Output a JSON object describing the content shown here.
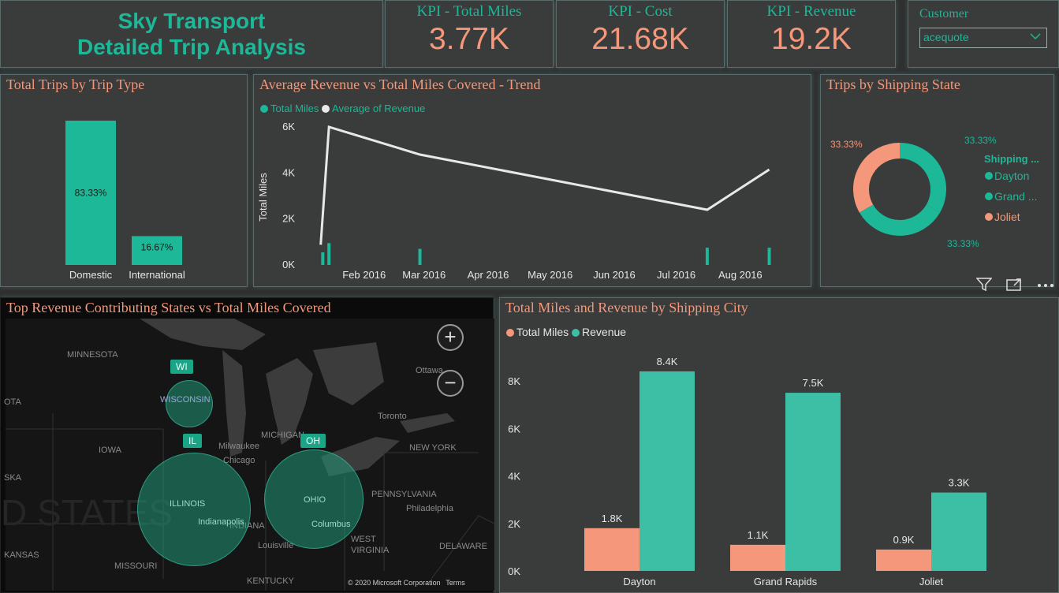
{
  "title": {
    "line1": "Sky Transport",
    "line2": "Detailed Trip Analysis"
  },
  "kpis": [
    {
      "label": "KPI - Total Miles",
      "value": "3.77K"
    },
    {
      "label": "KPI - Cost",
      "value": "21.68K"
    },
    {
      "label": "KPI - Revenue",
      "value": "19.2K"
    }
  ],
  "slicer": {
    "label": "Customer",
    "selected": "acequote",
    "chevron_icon": "chevron-down-icon"
  },
  "colors": {
    "teal": "#1cb898",
    "salmon": "#f4977a",
    "line": "#e8e8e8",
    "background": "#2f3030"
  },
  "visual_header_icons": [
    "filter-icon",
    "focus-mode-icon",
    "more-options-icon"
  ],
  "map": {
    "title": "Top Revenue Contributing States vs Total Miles Covered",
    "zoom_in": "+",
    "zoom_out": "−",
    "badges": {
      "wi": "WI",
      "il": "IL",
      "oh": "OH"
    },
    "labels": {
      "minnesota": "MINNESOTA",
      "wisconsin": "WISCONSIN",
      "michigan": "MICHIGAN",
      "iowa": "IOWA",
      "illinois": "ILLINOIS",
      "ohio": "OHIO",
      "indiana": "INDIANA",
      "pennsylvania": "PENNSYLVANIA",
      "newyork": "NEW YORK",
      "westvirginia": "WEST",
      "virginia": "VIRGINIA",
      "kentucky": "KENTUCKY",
      "missouri": "MISSOURI",
      "kansas": "KANSAS",
      "milwaukee": "Milwaukee",
      "chicago": "Chicago",
      "toronto": "Toronto",
      "ottawa": "Ottawa",
      "philadelphia": "Philadelphia",
      "indianapolis": "Indianapolis",
      "columbus": "Columbus",
      "louisville": "Louisville",
      "delaware": "DELAWARE",
      "ska": "SKA",
      "ota": "OTA",
      "states_watermark": "D STATES"
    },
    "copyright": "© 2020 Microsoft Corporation",
    "terms": "Terms"
  },
  "chart_data": [
    {
      "type": "bar",
      "title": "Total Trips by Trip Type",
      "categories": [
        "Domestic",
        "International"
      ],
      "values": [
        83.33,
        16.67
      ],
      "data_labels": [
        "83.33%",
        "16.67%"
      ],
      "color": "#1cb898"
    },
    {
      "type": "line",
      "title": "Average Revenue vs Total Miles Covered - Trend",
      "ylabel": "Total Miles",
      "y_ticks": [
        "0K",
        "2K",
        "4K",
        "6K"
      ],
      "ylim": [
        0,
        6500
      ],
      "x_ticks": [
        "Feb 2016",
        "Mar 2016",
        "Apr 2016",
        "May 2016",
        "Jun 2016",
        "Jul 2016",
        "Aug 2016"
      ],
      "legend": [
        "Total Miles",
        "Average of Revenue"
      ],
      "series": [
        {
          "name": "Average of Revenue",
          "type": "line",
          "x": [
            "2016-01-15",
            "2016-01-19",
            "2016-03-03",
            "2016-07-20",
            "2016-08-19"
          ],
          "values": [
            880,
            6000,
            4800,
            2400,
            4150
          ],
          "color": "#e8e8e8"
        },
        {
          "name": "Total Miles",
          "type": "bar",
          "x": [
            "2016-01-16",
            "2016-01-19",
            "2016-03-03",
            "2016-07-20",
            "2016-08-19"
          ],
          "values": [
            550,
            950,
            700,
            750,
            750
          ],
          "color": "#1cb898"
        }
      ]
    },
    {
      "type": "pie",
      "title": "Trips by Shipping State",
      "legend_title": "Shipping ...",
      "labels": [
        "Dayton",
        "Grand ...",
        "Joliet"
      ],
      "values": [
        33.33,
        33.33,
        33.33
      ],
      "data_labels": [
        "33.33%",
        "33.33%",
        "33.33%"
      ],
      "colors": [
        "#1cb898",
        "#1cb898",
        "#f4977a"
      ]
    },
    {
      "type": "bar",
      "title": "Total Miles and Revenue by Shipping City",
      "categories": [
        "Dayton",
        "Grand Rapids",
        "Joliet"
      ],
      "y_ticks": [
        "0K",
        "2K",
        "4K",
        "6K",
        "8K"
      ],
      "ylim": [
        0,
        9000
      ],
      "series": [
        {
          "name": "Total Miles",
          "values": [
            1800,
            1100,
            900
          ],
          "data_labels": [
            "1.8K",
            "1.1K",
            "0.9K"
          ],
          "color": "#f4977a"
        },
        {
          "name": "Revenue",
          "values": [
            8400,
            7500,
            3300
          ],
          "data_labels": [
            "8.4K",
            "7.5K",
            "3.3K"
          ],
          "color": "#3dbfa5"
        }
      ]
    }
  ]
}
